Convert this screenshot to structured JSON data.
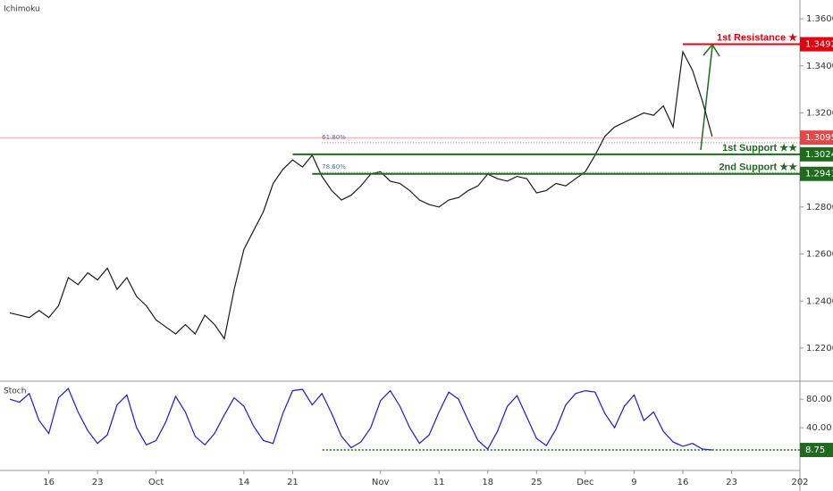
{
  "chart_data": [
    {
      "type": "line",
      "title": "Ichimoku",
      "color": "#1a1a1a",
      "x": [
        -4,
        -3,
        -2,
        -1,
        0,
        1,
        2,
        3,
        4,
        5,
        6,
        7,
        8,
        9,
        10,
        11,
        12,
        13,
        14,
        15,
        16,
        17,
        18,
        19,
        20,
        21,
        22,
        23,
        24,
        25,
        26,
        27,
        28,
        29,
        30,
        31,
        32,
        33,
        34,
        35,
        36,
        37,
        38,
        39,
        40,
        41,
        42,
        43,
        44,
        45,
        46,
        47,
        48,
        49,
        50,
        51,
        52,
        53,
        54,
        55,
        56,
        57,
        58,
        59,
        60,
        61,
        62,
        63,
        64,
        65,
        66,
        67,
        68
      ],
      "values": [
        1.235,
        1.234,
        1.233,
        1.236,
        1.233,
        1.238,
        1.25,
        1.247,
        1.252,
        1.249,
        1.254,
        1.245,
        1.25,
        1.242,
        1.238,
        1.232,
        1.229,
        1.226,
        1.23,
        1.226,
        1.234,
        1.23,
        1.224,
        1.245,
        1.262,
        1.27,
        1.278,
        1.29,
        1.296,
        1.3,
        1.297,
        1.302,
        1.293,
        1.287,
        1.283,
        1.285,
        1.289,
        1.294,
        1.295,
        1.291,
        1.29,
        1.287,
        1.283,
        1.281,
        1.28,
        1.283,
        1.284,
        1.287,
        1.289,
        1.294,
        1.292,
        1.291,
        1.293,
        1.292,
        1.286,
        1.287,
        1.29,
        1.289,
        1.292,
        1.295,
        1.302,
        1.31,
        1.314,
        1.316,
        1.318,
        1.32,
        1.319,
        1.323,
        1.314,
        1.346,
        1.338,
        1.325,
        1.31
      ],
      "xlim": [
        -5,
        77
      ],
      "ylim": [
        1.2067,
        1.368
      ],
      "yticks": [
        {
          "value": 1.36,
          "label": "1.3600"
        },
        {
          "value": 1.34,
          "label": "1.3400"
        },
        {
          "value": 1.32,
          "label": "1.3200"
        },
        {
          "value": 1.28,
          "label": "1.2800"
        },
        {
          "value": 1.26,
          "label": "1.2600"
        },
        {
          "value": 1.24,
          "label": "1.2400"
        },
        {
          "value": 1.22,
          "label": "1.2200"
        }
      ],
      "levels": [
        {
          "label": "1st Resistance ★",
          "value": 1.3492,
          "color": "#e3000f",
          "x_start": 65
        },
        {
          "label": "1st Support ★★",
          "value": 1.3024,
          "color": "#1e6b1e",
          "x_start": 25
        },
        {
          "label": "2nd Support ★★",
          "value": 1.2941,
          "color": "#1e6b1e",
          "x_start": 27
        }
      ],
      "fib_levels": [
        {
          "label": "61.80%",
          "value": 1.3073,
          "x_start": 28
        },
        {
          "label": "78.60%",
          "value": 1.2947,
          "x_start": 28
        }
      ],
      "last_price": {
        "value": 1.3095,
        "color": "#e84545"
      }
    },
    {
      "type": "line",
      "title": "Stoch",
      "color": "#1a1adc",
      "x": [
        -4,
        -3,
        -2,
        -1,
        0,
        1,
        2,
        3,
        4,
        5,
        6,
        7,
        8,
        9,
        10,
        11,
        12,
        13,
        14,
        15,
        16,
        17,
        18,
        19,
        20,
        21,
        22,
        23,
        24,
        25,
        26,
        27,
        28,
        29,
        30,
        31,
        32,
        33,
        34,
        35,
        36,
        37,
        38,
        39,
        40,
        41,
        42,
        43,
        44,
        45,
        46,
        47,
        48,
        49,
        50,
        51,
        52,
        53,
        54,
        55,
        56,
        57,
        58,
        59,
        60,
        61,
        62,
        63,
        64,
        65,
        66,
        67,
        68
      ],
      "values": [
        80,
        76,
        88,
        50,
        32,
        82,
        95,
        62,
        36,
        18,
        30,
        72,
        86,
        40,
        16,
        22,
        48,
        84,
        62,
        28,
        16,
        32,
        58,
        82,
        70,
        42,
        22,
        18,
        60,
        92,
        94,
        72,
        88,
        60,
        28,
        12,
        20,
        40,
        78,
        92,
        70,
        40,
        18,
        30,
        62,
        90,
        80,
        50,
        22,
        10,
        35,
        70,
        85,
        55,
        25,
        15,
        38,
        72,
        88,
        92,
        90,
        60,
        40,
        70,
        86,
        50,
        62,
        35,
        20,
        14,
        18,
        10,
        8.75
      ],
      "xlim": [
        -5,
        77
      ],
      "ylim": [
        -20,
        104
      ],
      "yticks": [
        {
          "value": 80,
          "label": "80.00"
        },
        {
          "value": 40,
          "label": "40.00"
        }
      ],
      "xticks": [
        {
          "value": 0,
          "label": "16"
        },
        {
          "value": 5,
          "label": "23"
        },
        {
          "value": 11,
          "label": "Oct"
        },
        {
          "value": 20,
          "label": "14"
        },
        {
          "value": 25,
          "label": "21"
        },
        {
          "value": 34,
          "label": "Nov"
        },
        {
          "value": 40,
          "label": "11"
        },
        {
          "value": 45,
          "label": "18"
        },
        {
          "value": 50,
          "label": "25"
        },
        {
          "value": 55,
          "label": "Dec"
        },
        {
          "value": 60,
          "label": "9"
        },
        {
          "value": 65,
          "label": "16"
        },
        {
          "value": 70,
          "label": "23"
        },
        {
          "value": 77,
          "label": "202"
        }
      ],
      "last_color": "#1e6b1e"
    }
  ]
}
